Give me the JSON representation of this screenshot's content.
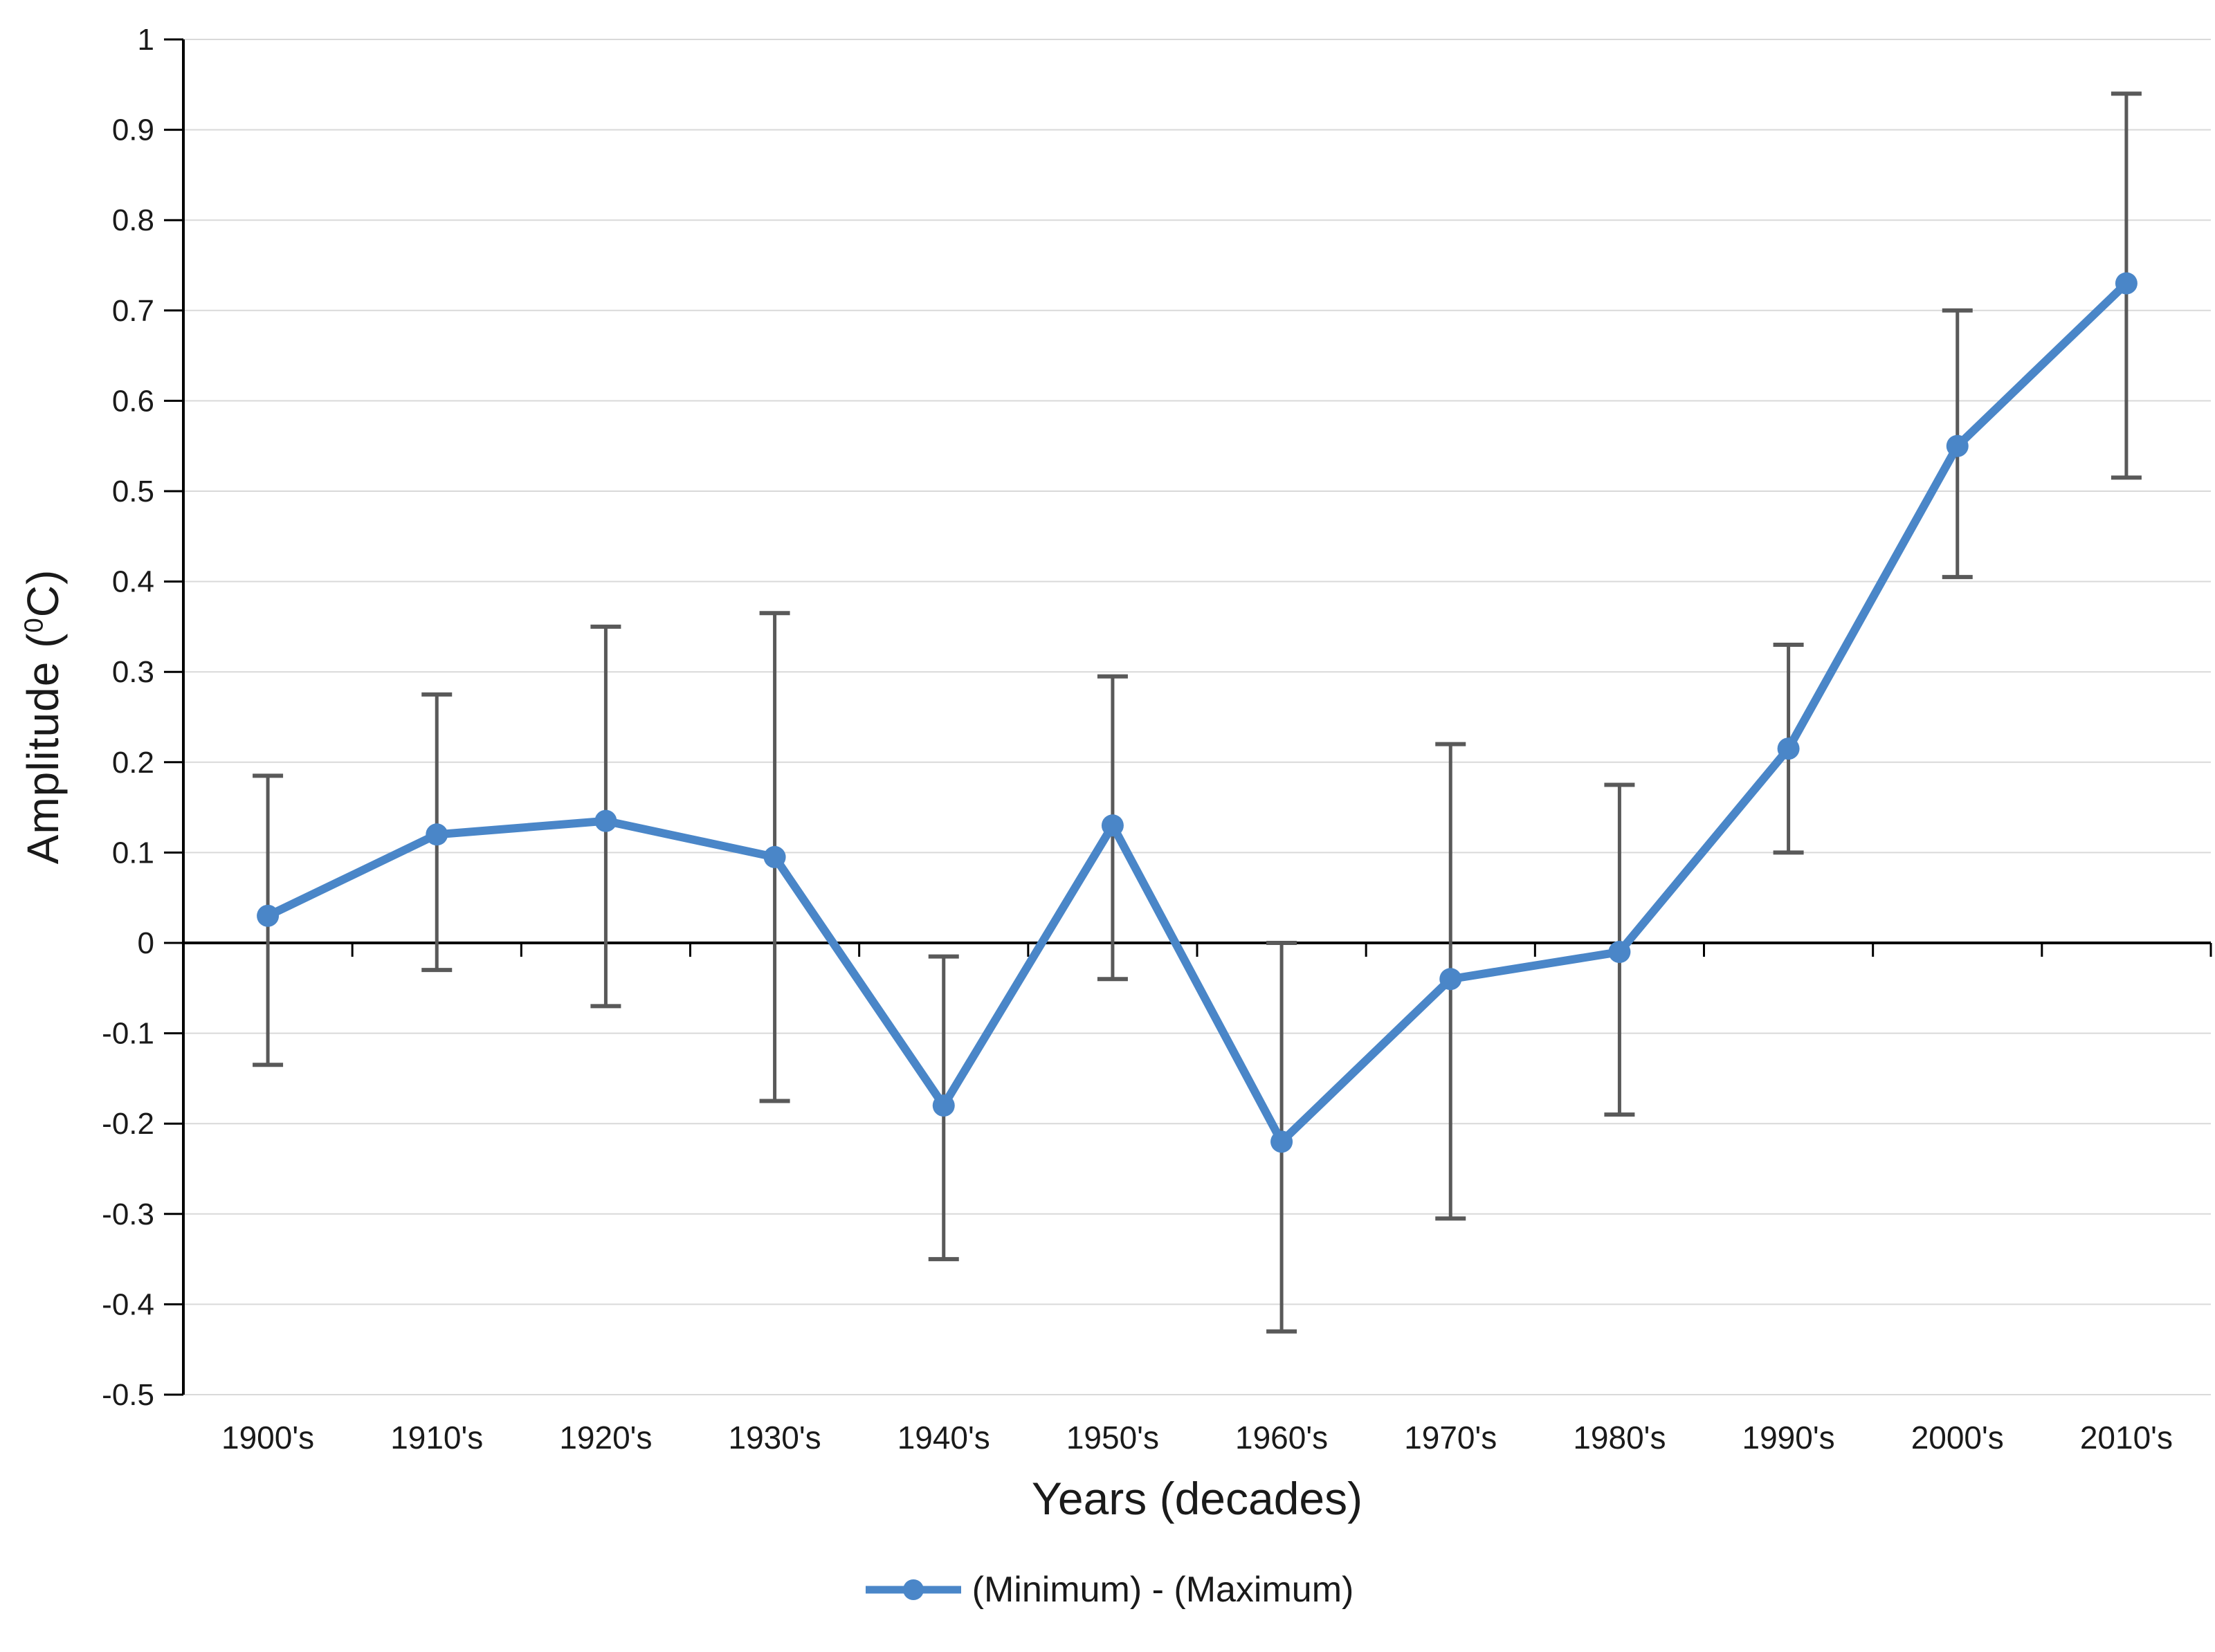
{
  "chart_data": {
    "type": "line",
    "title": "",
    "xlabel": "Years (decades)",
    "ylabel": "Amplitude (⁰C)",
    "ylabel_parts": {
      "prefix": "Amplitude (",
      "sup": "0",
      "suffix": "C)"
    },
    "categories": [
      "1900's",
      "1910's",
      "1920's",
      "1930's",
      "1940's",
      "1950's",
      "1960's",
      "1970's",
      "1980's",
      "1990's",
      "2000's",
      "2010's"
    ],
    "series": [
      {
        "name": "(Minimum) - (Maximum)",
        "values": [
          0.03,
          0.12,
          0.135,
          0.095,
          -0.18,
          0.13,
          -0.22,
          -0.04,
          -0.01,
          0.215,
          0.55,
          0.73
        ],
        "error_low": [
          -0.135,
          -0.03,
          -0.07,
          -0.175,
          -0.35,
          -0.04,
          -0.43,
          -0.305,
          -0.19,
          0.1,
          0.405,
          0.515
        ],
        "error_high": [
          0.185,
          0.275,
          0.35,
          0.365,
          -0.015,
          0.295,
          0.0,
          0.22,
          0.175,
          0.33,
          0.7,
          0.94
        ]
      }
    ],
    "ylim": [
      -0.5,
      1.0
    ],
    "ytick_step": 0.1,
    "ytick_labels": [
      "1",
      "0.9",
      "0.8",
      "0.7",
      "0.6",
      "0.5",
      "0.4",
      "0.3",
      "0.2",
      "0.1",
      "0",
      "-0.1",
      "-0.2",
      "-0.3",
      "-0.4",
      "-0.5"
    ],
    "grid": true,
    "legend_position": "bottom",
    "marker": "circle",
    "colors": {
      "line": "#4A86C8",
      "error_bar": "#595959",
      "gridline": "#D9D9D9",
      "axis": "#000000",
      "text": "#1a1a1a"
    }
  },
  "legend": {
    "label": "(Minimum) - (Maximum)"
  }
}
